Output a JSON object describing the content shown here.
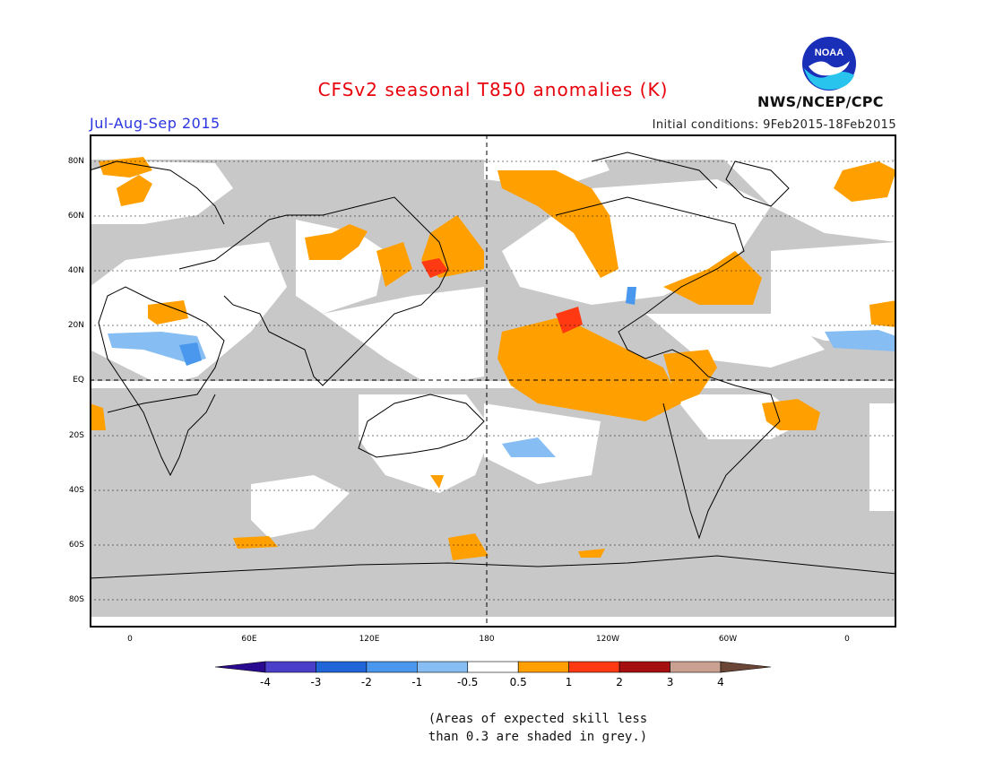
{
  "header": {
    "title": "CFSv2 seasonal T850 anomalies (K)",
    "period": "Jul-Aug-Sep 2015",
    "initial_conditions": "Initial conditions: 9Feb2015-18Feb2015",
    "agency": "NWS/NCEP/CPC",
    "logo_text": "NOAA"
  },
  "map": {
    "lat_labels": [
      "80N",
      "60N",
      "40N",
      "20N",
      "EQ",
      "20S",
      "40S",
      "60S",
      "80S"
    ],
    "lon_labels": [
      "0",
      "60E",
      "120E",
      "180",
      "120W",
      "60W",
      "0"
    ]
  },
  "colorbar": {
    "labels": [
      "-4",
      "-3",
      "-2",
      "-1",
      "-0.5",
      "0.5",
      "1",
      "2",
      "3",
      "4"
    ],
    "colors": [
      "#2a0a8f",
      "#4b3ec9",
      "#2166d8",
      "#4a98ee",
      "#86bdf2",
      "#ffffff",
      "#ff9f00",
      "#ff3a12",
      "#a50f0f",
      "#caa090",
      "#6b4535"
    ]
  },
  "note": {
    "line1": "(Areas of expected skill less",
    "line2": "than 0.3 are shaded in grey.)"
  }
}
